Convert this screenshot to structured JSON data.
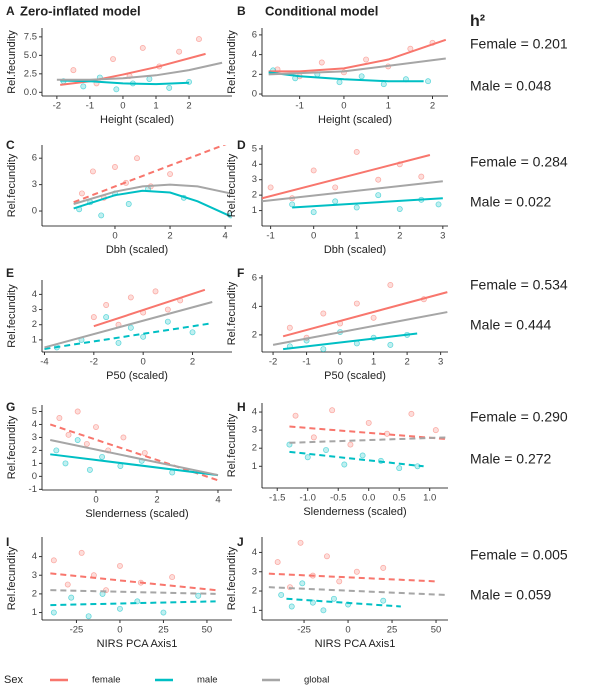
{
  "h2_title": "h²",
  "legend": {
    "title": "Sex",
    "entries": [
      {
        "name": "female",
        "color": "#f8766d"
      },
      {
        "name": "male",
        "color": "#00bfc4"
      },
      {
        "name": "global",
        "color": "#a6a6a6"
      }
    ]
  },
  "chart_data": [
    {
      "type": "scatter",
      "label": "A",
      "title": "Zero-inflated model",
      "xlabel": "Height (scaled)",
      "ylabel": "Rel.fecundity",
      "xlim": [
        -2.45,
        3.3
      ],
      "ylim": [
        -0.5,
        8.7
      ],
      "xticks": [
        -2,
        -1,
        0,
        1,
        2
      ],
      "yticks": [
        {
          "value": 0,
          "label": "0.0"
        },
        {
          "value": 2.5,
          "label": "2.5"
        },
        {
          "value": 5,
          "label": "5.0"
        },
        {
          "value": 7.5,
          "label": "7.5"
        }
      ],
      "series": [
        {
          "x": [
            -1.5,
            -0.8,
            -0.3,
            0.2,
            0.6,
            1.1,
            1.7,
            2.3
          ],
          "values": [
            3.0,
            1.2,
            4.5,
            2.2,
            6.0,
            3.5,
            5.5,
            7.2
          ],
          "fit_x": [
            -1.9,
            -1,
            0,
            1,
            2.5
          ],
          "fit": [
            1.0,
            1.5,
            2.4,
            3.4,
            5.2
          ],
          "dashed": false
        },
        {
          "x": [
            -1.8,
            -1.2,
            -0.7,
            -0.2,
            0.3,
            0.8,
            1.4,
            2.0
          ],
          "values": [
            1.5,
            0.8,
            2.0,
            0.4,
            1.2,
            1.8,
            0.6,
            1.4
          ],
          "fit_x": [
            -1.9,
            -1,
            0,
            1,
            2
          ],
          "fit": [
            1.6,
            1.5,
            1.2,
            1.1,
            1.3
          ],
          "dashed": false
        },
        {
          "x": [],
          "values": [],
          "fit_x": [
            -2,
            -1,
            0,
            1,
            2,
            3
          ],
          "fit": [
            1.7,
            1.7,
            1.9,
            2.3,
            3.0,
            4.0
          ],
          "dashed": false
        }
      ]
    },
    {
      "type": "scatter",
      "label": "B",
      "title": "Conditional model",
      "xlabel": "Height (scaled)",
      "ylabel": "Rel.fecundity",
      "xlim": [
        -1.85,
        2.35
      ],
      "ylim": [
        -0.2,
        6.7
      ],
      "xticks": [
        -1,
        0,
        1,
        2
      ],
      "yticks": [
        0,
        2,
        4,
        6
      ],
      "annotations": [
        "Female = 0.201",
        "Male = 0.048"
      ],
      "series": [
        {
          "x": [
            -1.5,
            -1.0,
            -0.5,
            0,
            0.5,
            1.0,
            1.5,
            2.0
          ],
          "values": [
            2.5,
            1.8,
            3.2,
            2.2,
            3.5,
            2.8,
            4.6,
            5.2
          ],
          "fit_x": [
            -1.7,
            -1,
            0,
            1,
            2.3
          ],
          "fit": [
            2.3,
            2.3,
            2.6,
            3.5,
            5.5
          ],
          "dashed": false
        },
        {
          "x": [
            -1.6,
            -1.1,
            -0.6,
            -0.1,
            0.4,
            0.9,
            1.4,
            1.9
          ],
          "values": [
            2.4,
            1.6,
            2.0,
            1.2,
            1.8,
            1.0,
            1.5,
            1.3
          ],
          "fit_x": [
            -1.7,
            -1,
            0,
            1,
            1.8
          ],
          "fit": [
            2.2,
            1.8,
            1.5,
            1.3,
            1.3
          ],
          "dashed": false
        },
        {
          "x": [],
          "values": [],
          "fit_x": [
            -1.7,
            0,
            2.3
          ],
          "fit": [
            2.0,
            2.3,
            3.6
          ],
          "dashed": false
        }
      ]
    },
    {
      "type": "scatter",
      "label": "C",
      "xlabel": "Dbh (scaled)",
      "ylabel": "Rel.fecundity",
      "xlim": [
        -2.65,
        4.25
      ],
      "ylim": [
        -1.7,
        7.5
      ],
      "xticks": [
        0,
        2,
        4
      ],
      "yticks": [
        0,
        3,
        6
      ],
      "series": [
        {
          "x": [
            -1.2,
            -0.8,
            -0.4,
            0,
            0.4,
            0.8,
            1.3,
            2.0
          ],
          "values": [
            2.0,
            4.5,
            1.5,
            5.0,
            3.2,
            6.0,
            2.8,
            4.2
          ],
          "fit_x": [
            -1.5,
            4.2
          ],
          "fit": [
            1.0,
            7.8
          ],
          "dashed": true
        },
        {
          "x": [
            -1.3,
            -0.9,
            -0.5,
            0,
            0.5,
            1.2,
            2.5,
            4.2
          ],
          "values": [
            0.2,
            1.0,
            -0.5,
            2.0,
            0.8,
            2.5,
            1.5,
            -0.5
          ],
          "fit_x": [
            -1.5,
            0,
            1,
            2,
            3,
            4.2
          ],
          "fit": [
            0.3,
            1.8,
            2.3,
            2.1,
            1.1,
            -0.6
          ],
          "dashed": false
        },
        {
          "x": [],
          "values": [],
          "fit_x": [
            -1.5,
            0,
            1,
            2,
            3,
            4.2
          ],
          "fit": [
            0.8,
            2.2,
            2.8,
            3.0,
            2.8,
            2.0
          ],
          "dashed": false
        }
      ]
    },
    {
      "type": "scatter",
      "label": "D",
      "xlabel": "Dbh (scaled)",
      "ylabel": "Rel.fecundity",
      "xlim": [
        -1.2,
        3.12
      ],
      "ylim": [
        0,
        5.25
      ],
      "xticks": [
        -1,
        0,
        1,
        2,
        3
      ],
      "yticks": [
        1,
        2,
        3,
        4,
        5
      ],
      "annotations": [
        "Female = 0.284",
        "Male = 0.022"
      ],
      "series": [
        {
          "x": [
            -1.0,
            -0.5,
            0,
            0.5,
            1.0,
            1.5,
            2.0,
            2.5
          ],
          "values": [
            2.5,
            1.8,
            3.6,
            2.5,
            4.8,
            3.0,
            4.0,
            3.2
          ],
          "fit_x": [
            -1.2,
            2.7
          ],
          "fit": [
            1.8,
            4.6
          ],
          "dashed": false
        },
        {
          "x": [
            -0.5,
            0,
            0.5,
            1.0,
            1.5,
            2.0,
            2.5,
            2.9
          ],
          "values": [
            1.4,
            0.9,
            1.6,
            1.2,
            2.0,
            1.1,
            1.7,
            1.4
          ],
          "fit_x": [
            -0.5,
            3
          ],
          "fit": [
            1.2,
            1.8
          ],
          "dashed": false
        },
        {
          "x": [],
          "values": [],
          "fit_x": [
            -1.2,
            3
          ],
          "fit": [
            1.6,
            2.9
          ],
          "dashed": false
        }
      ]
    },
    {
      "type": "scatter",
      "label": "E",
      "xlabel": "P50 (scaled)",
      "ylabel": "Rel.fecundity",
      "xlim": [
        -4.1,
        3.6
      ],
      "ylim": [
        0.2,
        4.95
      ],
      "xticks": [
        -4,
        -2,
        0,
        2
      ],
      "yticks": [
        1,
        2,
        3,
        4
      ],
      "series": [
        {
          "x": [
            -2,
            -1.5,
            -1,
            -0.5,
            0,
            0.5,
            1,
            1.5
          ],
          "values": [
            2.5,
            3.3,
            2.0,
            3.8,
            2.8,
            4.2,
            3.0,
            3.6
          ],
          "fit_x": [
            -2,
            2.5
          ],
          "fit": [
            1.9,
            4.3
          ],
          "dashed": false
        },
        {
          "x": [
            -3.5,
            -2.5,
            -1.5,
            -1,
            -0.5,
            0,
            1,
            2
          ],
          "values": [
            0.5,
            1.0,
            2.5,
            0.8,
            1.8,
            1.2,
            2.2,
            1.5
          ],
          "fit_x": [
            -4,
            2.8
          ],
          "fit": [
            0.4,
            2.1
          ],
          "dashed": true
        },
        {
          "x": [],
          "values": [],
          "fit_x": [
            -4,
            2.8
          ],
          "fit": [
            0.5,
            3.5
          ],
          "dashed": false
        }
      ]
    },
    {
      "type": "scatter",
      "label": "F",
      "xlabel": "P50 (scaled)",
      "ylabel": "Rel.fecundity",
      "xlim": [
        -2.33,
        3.22
      ],
      "ylim": [
        0.8,
        6.2
      ],
      "xticks": [
        -2,
        -1,
        0,
        1,
        2,
        3
      ],
      "yticks": [
        2,
        4,
        6
      ],
      "annotations": [
        "Female = 0.534",
        "Male = 0.444"
      ],
      "series": [
        {
          "x": [
            -1.5,
            -1,
            -0.5,
            0,
            0.5,
            1,
            1.5,
            2.5
          ],
          "values": [
            2.5,
            1.8,
            3.5,
            2.8,
            4.2,
            3.2,
            5.5,
            4.5
          ],
          "fit_x": [
            -1.7,
            3.2
          ],
          "fit": [
            1.9,
            5.0
          ],
          "dashed": false
        },
        {
          "x": [
            -1.5,
            -1,
            -0.5,
            0,
            0.5,
            1,
            1.5,
            2
          ],
          "values": [
            1.2,
            1.6,
            1.0,
            2.2,
            1.4,
            1.8,
            1.3,
            2.0
          ],
          "fit_x": [
            -1.7,
            2.3
          ],
          "fit": [
            1.0,
            2.1
          ],
          "dashed": false
        },
        {
          "x": [],
          "values": [],
          "fit_x": [
            -2,
            3.2
          ],
          "fit": [
            1.3,
            3.6
          ],
          "dashed": false
        }
      ]
    },
    {
      "type": "scatter",
      "label": "G",
      "xlabel": "Slenderness (scaled)",
      "ylabel": "Rel.fecundity",
      "xlim": [
        -1.77,
        4.46
      ],
      "ylim": [
        -1.05,
        5.5
      ],
      "xticks": [
        0,
        2,
        4
      ],
      "yticks": [
        -1,
        0,
        1,
        2,
        3,
        4,
        5
      ],
      "series": [
        {
          "x": [
            -1.2,
            -0.9,
            -0.6,
            -0.3,
            0,
            0.4,
            0.9,
            1.6
          ],
          "values": [
            4.5,
            3.2,
            5.0,
            2.5,
            3.8,
            2.0,
            3.0,
            1.8
          ],
          "fit_x": [
            -1.5,
            4
          ],
          "fit": [
            4.0,
            -0.3
          ],
          "dashed": true
        },
        {
          "x": [
            -1.3,
            -1.0,
            -0.6,
            -0.2,
            0.2,
            0.8,
            1.5,
            2.5
          ],
          "values": [
            2.0,
            1.0,
            2.8,
            0.5,
            1.5,
            0.8,
            1.2,
            0.3
          ],
          "fit_x": [
            -1.5,
            4
          ],
          "fit": [
            1.7,
            0.1
          ],
          "dashed": false
        },
        {
          "x": [],
          "values": [],
          "fit_x": [
            -1.5,
            4
          ],
          "fit": [
            2.8,
            0.1
          ],
          "dashed": false
        }
      ]
    },
    {
      "type": "scatter",
      "label": "H",
      "xlabel": "Slenderness (scaled)",
      "ylabel": "Rel.fecundity",
      "xlim": [
        -1.75,
        1.3
      ],
      "ylim": [
        -0.2,
        4.5
      ],
      "xticks": [
        {
          "value": -1.5,
          "label": "-1.5"
        },
        {
          "value": -1,
          "label": "-1.0"
        },
        {
          "value": -0.5,
          "label": "-0.5"
        },
        {
          "value": 0,
          "label": "0.0"
        },
        {
          "value": 0.5,
          "label": "0.5"
        },
        {
          "value": 1,
          "label": "1.0"
        }
      ],
      "yticks": [
        1,
        2,
        3,
        4
      ],
      "annotations": [
        "Female = 0.290",
        "Male = 0.272"
      ],
      "series": [
        {
          "x": [
            -1.2,
            -0.9,
            -0.6,
            -0.3,
            0,
            0.3,
            0.7,
            1.1
          ],
          "values": [
            3.8,
            2.6,
            4.1,
            2.2,
            3.4,
            2.8,
            3.9,
            3.0
          ],
          "fit_x": [
            -1.3,
            1.3
          ],
          "fit": [
            3.2,
            2.5
          ],
          "dashed": true
        },
        {
          "x": [
            -1.3,
            -1.0,
            -0.7,
            -0.4,
            -0.1,
            0.2,
            0.5,
            0.8
          ],
          "values": [
            2.2,
            1.5,
            1.9,
            1.1,
            1.6,
            1.3,
            0.9,
            1.0
          ],
          "fit_x": [
            -1.3,
            0.9
          ],
          "fit": [
            1.8,
            1.0
          ],
          "dashed": true
        },
        {
          "x": [],
          "values": [],
          "fit_x": [
            -1.3,
            1.3
          ],
          "fit": [
            2.3,
            2.6
          ],
          "dashed": true
        }
      ]
    },
    {
      "type": "scatter",
      "label": "I",
      "xlabel": "NIRS PCA Axis1",
      "ylabel": "Rel.fecundity",
      "xlim": [
        -44.8,
        64.4
      ],
      "ylim": [
        0.6,
        5.05
      ],
      "xticks": [
        -25,
        0,
        25,
        50
      ],
      "yticks": [
        1,
        2,
        3,
        4
      ],
      "series": [
        {
          "x": [
            -38,
            -30,
            -22,
            -15,
            -8,
            0,
            12,
            30
          ],
          "values": [
            3.8,
            2.5,
            4.2,
            3.0,
            2.2,
            3.5,
            2.6,
            2.9
          ],
          "fit_x": [
            -40,
            55
          ],
          "fit": [
            3.1,
            2.2
          ],
          "dashed": true
        },
        {
          "x": [
            -38,
            -28,
            -18,
            -10,
            0,
            10,
            25,
            45
          ],
          "values": [
            1.0,
            1.8,
            0.8,
            2.0,
            1.2,
            1.6,
            1.0,
            1.9
          ],
          "fit_x": [
            -40,
            55
          ],
          "fit": [
            1.4,
            1.6
          ],
          "dashed": true
        },
        {
          "x": [],
          "values": [],
          "fit_x": [
            -40,
            55
          ],
          "fit": [
            2.2,
            2.0
          ],
          "dashed": true
        }
      ]
    },
    {
      "type": "scatter",
      "label": "J",
      "xlabel": "NIRS PCA Axis1",
      "ylabel": "Rel.fecundity",
      "xlim": [
        -48.9,
        56.8
      ],
      "ylim": [
        0.5,
        4.8
      ],
      "xticks": [
        -25,
        0,
        25,
        50
      ],
      "yticks": [
        1,
        2,
        3,
        4
      ],
      "annotations": [
        "Female = 0.005",
        "Male = 0.059"
      ],
      "series": [
        {
          "x": [
            -40,
            -33,
            -27,
            -20,
            -12,
            -5,
            5,
            20
          ],
          "values": [
            3.5,
            2.2,
            4.5,
            2.8,
            3.8,
            2.5,
            3.0,
            3.2
          ],
          "fit_x": [
            -45,
            50
          ],
          "fit": [
            2.9,
            2.5
          ],
          "dashed": true
        },
        {
          "x": [
            -38,
            -32,
            -26,
            -20,
            -14,
            -8,
            0,
            20
          ],
          "values": [
            1.8,
            1.2,
            2.4,
            1.4,
            1.0,
            1.6,
            1.3,
            1.5
          ],
          "fit_x": [
            -35,
            30
          ],
          "fit": [
            1.6,
            1.2
          ],
          "dashed": true
        },
        {
          "x": [],
          "values": [],
          "fit_x": [
            -45,
            55
          ],
          "fit": [
            2.2,
            1.8
          ],
          "dashed": true
        }
      ]
    }
  ]
}
